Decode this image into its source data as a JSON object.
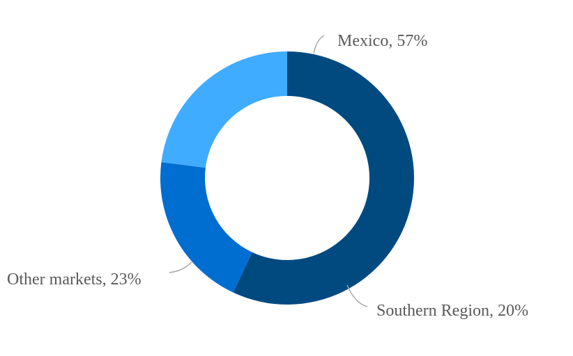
{
  "chart_data": {
    "type": "pie",
    "variant": "donut",
    "title": "",
    "legend": "none",
    "slices": [
      {
        "name": "Mexico",
        "value": 57,
        "label": "Mexico, 57%",
        "color": "#004a80"
      },
      {
        "name": "Southern Region",
        "value": 20,
        "label": "Southern Region, 20%",
        "color": "#006dd1"
      },
      {
        "name": "Other markets",
        "value": 23,
        "label": "Other markets, 23%",
        "color": "#40acff"
      }
    ]
  }
}
